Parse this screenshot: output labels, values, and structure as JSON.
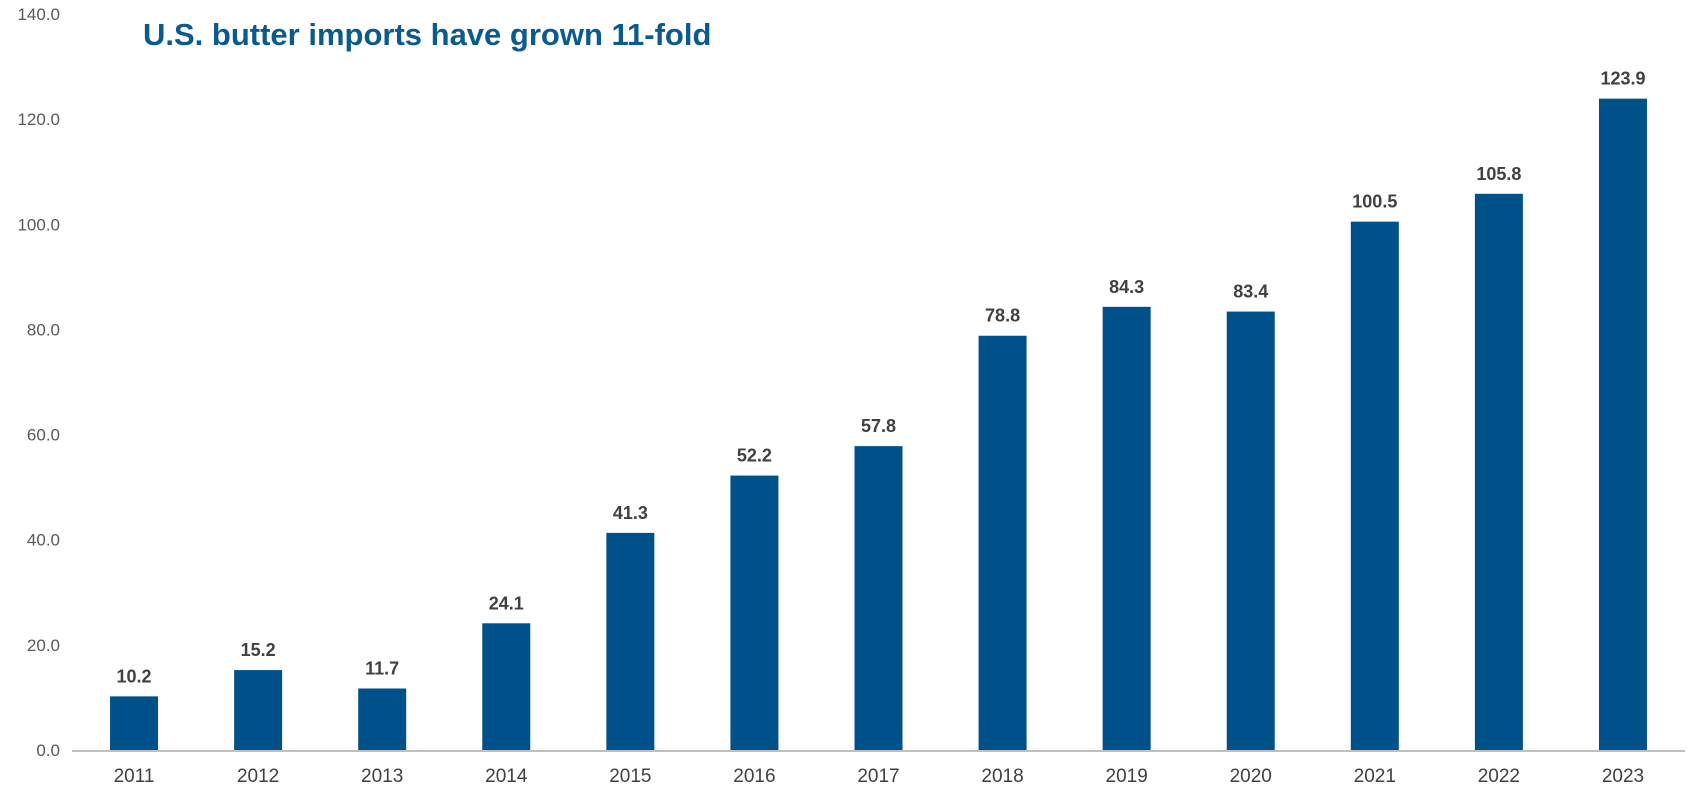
{
  "chart_data": {
    "type": "bar",
    "title": "U.S. butter imports have grown 11-fold",
    "xlabel": "",
    "ylabel": "",
    "categories": [
      "2011",
      "2012",
      "2013",
      "2014",
      "2015",
      "2016",
      "2017",
      "2018",
      "2019",
      "2020",
      "2021",
      "2022",
      "2023"
    ],
    "values": [
      10.2,
      15.2,
      11.7,
      24.1,
      41.3,
      52.2,
      57.8,
      78.8,
      84.3,
      83.4,
      100.5,
      105.8,
      123.9
    ],
    "value_labels": [
      "10.2",
      "15.2",
      "11.7",
      "24.1",
      "41.3",
      "52.2",
      "57.8",
      "78.8",
      "84.3",
      "83.4",
      "100.5",
      "105.8",
      "123.9"
    ],
    "ylim": [
      0,
      140
    ],
    "y_ticks": [
      "0.0",
      "20.0",
      "40.0",
      "60.0",
      "80.0",
      "100.0",
      "120.0",
      "140.0"
    ],
    "grid": false,
    "legend": "none",
    "colors": {
      "bar": "#00518A",
      "title": "#0B5A8E",
      "axis_line": "#BFBFBF"
    }
  }
}
